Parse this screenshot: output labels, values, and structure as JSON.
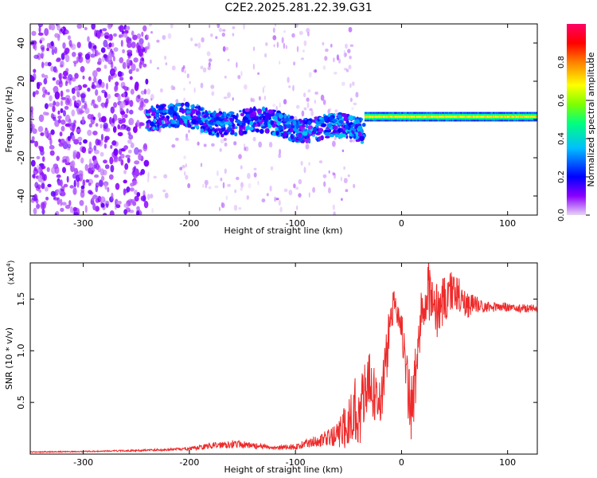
{
  "title": "C2E2.2025.281.22.39.G31",
  "chart_data": [
    {
      "type": "heatmap",
      "name": "spectrogram",
      "xlabel": "Height of straight line (km)",
      "ylabel": "Frequency (Hz)",
      "xlim": [
        -350,
        128
      ],
      "ylim": [
        -50,
        50
      ],
      "xticks": [
        -300,
        -200,
        -100,
        0,
        100
      ],
      "yticks": [
        -40,
        -20,
        0,
        20,
        40
      ],
      "colorbar": {
        "label": "Normalized spectral amplitude",
        "range": [
          0,
          1
        ],
        "ticks": [
          0.0,
          0.2,
          0.4,
          0.6,
          0.8
        ],
        "colormap": [
          "#e8d5f5",
          "#8b00ff",
          "#0000ff",
          "#00bfff",
          "#00ff7f",
          "#7fff00",
          "#ffff00",
          "#ff8000",
          "#ff0000",
          "#ff0066"
        ]
      },
      "features": [
        {
          "region": "noise",
          "x_range": [
            -350,
            -240
          ],
          "freq_range": [
            -50,
            50
          ],
          "amplitude": 0.12
        },
        {
          "region": "scattered",
          "x_range": [
            -240,
            -40
          ],
          "freq_range": [
            -50,
            50
          ],
          "amplitude": 0.05
        },
        {
          "region": "band",
          "x_range": [
            -240,
            -35
          ],
          "center_freq": [
            2,
            0,
            -6
          ],
          "width_hz": 12,
          "amplitude": 0.3
        },
        {
          "region": "tone",
          "x_range": [
            -35,
            128
          ],
          "center_freq": 1.5,
          "width_hz": 5,
          "amplitude": 0.7
        }
      ]
    },
    {
      "type": "line",
      "name": "snr",
      "xlabel": "Height of straight line (km)",
      "ylabel": "SNR (10 * v/v)",
      "y_multiplier": "(x10",
      "y_multiplier_exp": "4",
      "xlim": [
        -350,
        128
      ],
      "ylim": [
        0,
        18500
      ],
      "xticks": [
        -300,
        -200,
        -100,
        0,
        100
      ],
      "yticks": [
        0.5,
        1.0,
        1.5
      ],
      "ytick_labels": [
        "0.5",
        "1.0",
        "1.5"
      ],
      "color": "#ee2a2a",
      "x": [
        -350,
        -300,
        -250,
        -200,
        -180,
        -160,
        -140,
        -120,
        -100,
        -90,
        -80,
        -70,
        -60,
        -50,
        -45,
        -40,
        -35,
        -30,
        -25,
        -20,
        -15,
        -10,
        -5,
        0,
        5,
        10,
        15,
        20,
        25,
        30,
        40,
        50,
        60,
        70,
        80,
        90,
        100,
        110,
        128
      ],
      "y": [
        200,
        250,
        350,
        500,
        800,
        1000,
        800,
        600,
        700,
        1000,
        1300,
        1500,
        1800,
        3000,
        4500,
        3800,
        5500,
        7000,
        5500,
        5000,
        8500,
        13500,
        14500,
        12500,
        7000,
        4000,
        9500,
        14500,
        17000,
        13500,
        15000,
        16000,
        14500,
        14500,
        14200,
        14300,
        14200,
        14100,
        14100
      ],
      "amplitude_envelope": [
        50,
        50,
        80,
        150,
        300,
        400,
        300,
        200,
        300,
        400,
        600,
        800,
        1300,
        2500,
        3500,
        3000,
        3500,
        3000,
        2800,
        2500,
        3000,
        2000,
        1500,
        1500,
        3000,
        4000,
        3000,
        2500,
        3500,
        3000,
        2500,
        2000,
        1500,
        800,
        600,
        500,
        400,
        400,
        400
      ]
    }
  ]
}
